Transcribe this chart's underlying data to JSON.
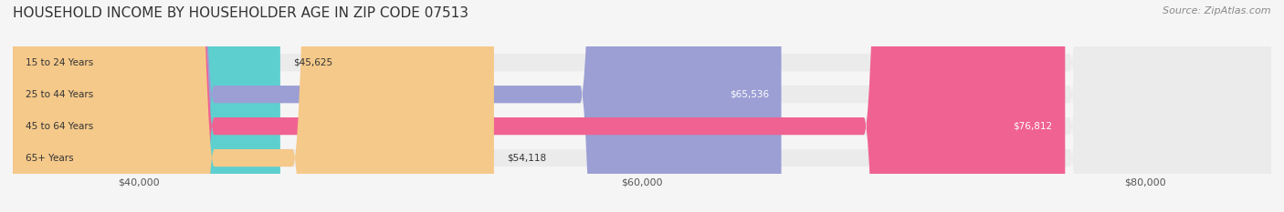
{
  "title": "HOUSEHOLD INCOME BY HOUSEHOLDER AGE IN ZIP CODE 07513",
  "source": "Source: ZipAtlas.com",
  "categories": [
    "15 to 24 Years",
    "25 to 44 Years",
    "45 to 64 Years",
    "65+ Years"
  ],
  "values": [
    45625,
    65536,
    76812,
    54118
  ],
  "bar_colors": [
    "#5ecfcf",
    "#9b9fd4",
    "#f06292",
    "#f5c98a"
  ],
  "label_colors": [
    "#333333",
    "#ffffff",
    "#ffffff",
    "#333333"
  ],
  "xmin": 35000,
  "xmax": 85000,
  "xticks": [
    40000,
    60000,
    80000
  ],
  "xtick_labels": [
    "$40,000",
    "$60,000",
    "$80,000"
  ],
  "bg_color": "#f5f5f5",
  "bar_bg_color": "#ebebeb",
  "title_fontsize": 11,
  "source_fontsize": 8,
  "tick_fontsize": 8,
  "label_fontsize": 7.5,
  "category_fontsize": 7.5
}
